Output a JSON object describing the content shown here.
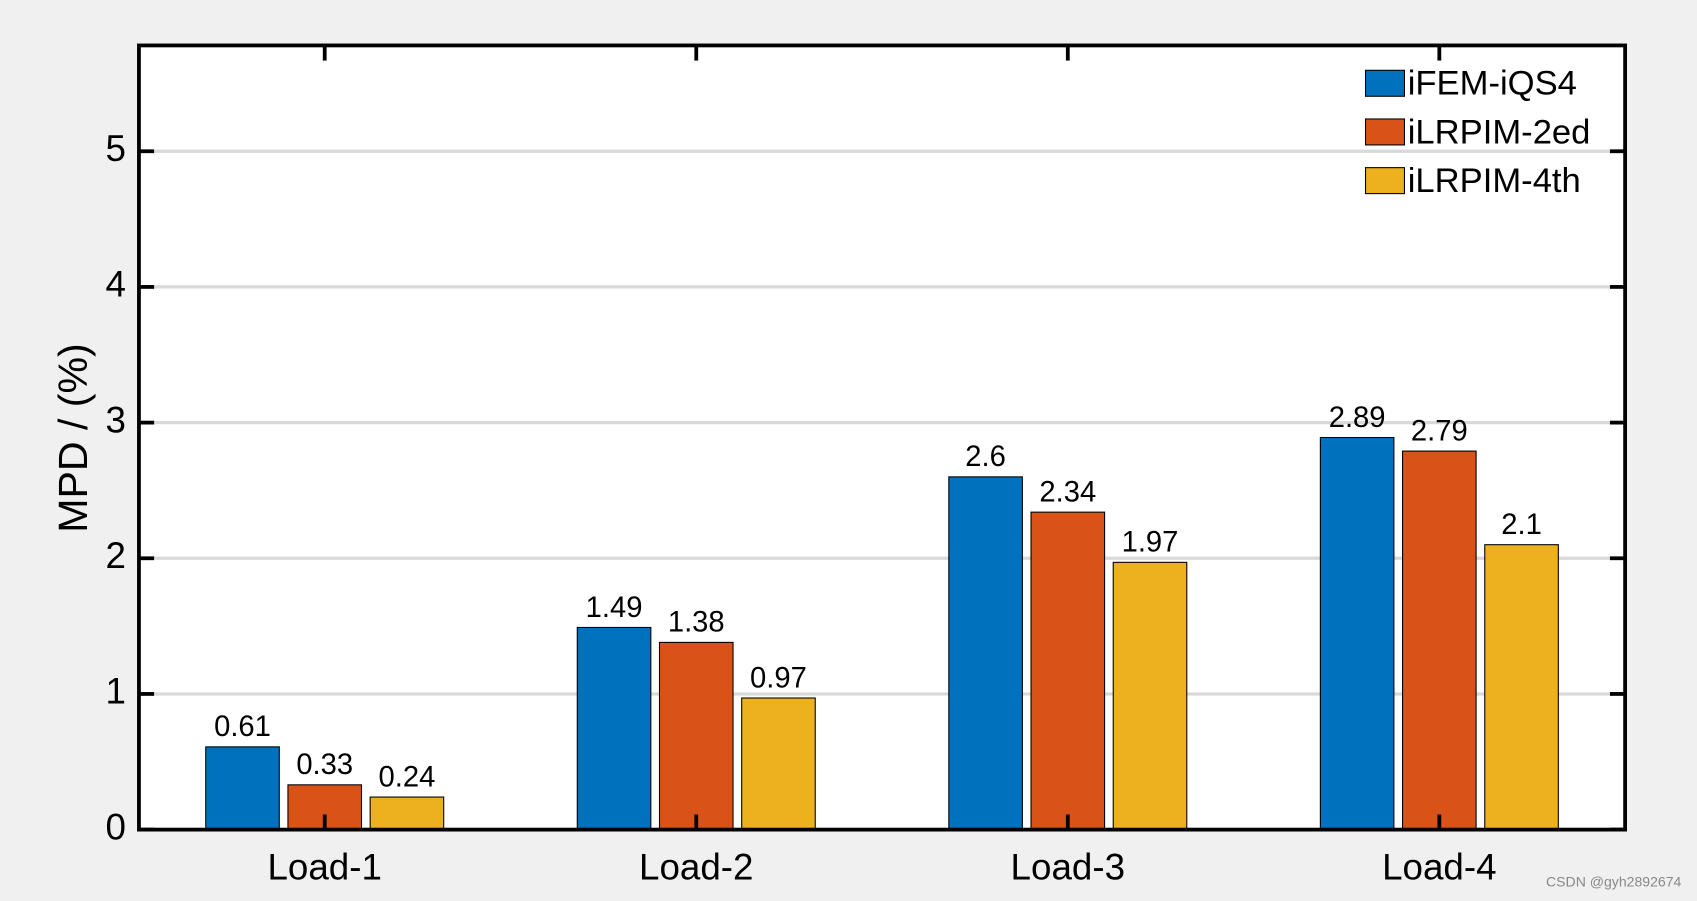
{
  "chart_data": {
    "type": "bar",
    "y_label": "MPD / (%)",
    "categories": [
      "Load-1",
      "Load-2",
      "Load-3",
      "Load-4"
    ],
    "series": [
      {
        "name": "iFEM-iQS4",
        "color": "#0072bd",
        "values": [
          0.61,
          1.49,
          2.6,
          2.89
        ]
      },
      {
        "name": "iLRPIM-2ed",
        "color": "#d95319",
        "values": [
          0.33,
          1.38,
          2.34,
          2.79
        ]
      },
      {
        "name": "iLRPIM-4th",
        "color": "#edb120",
        "values": [
          0.24,
          0.97,
          1.97,
          2.1
        ]
      }
    ],
    "ylim": [
      0,
      5.78
    ],
    "yticks": [
      0,
      1,
      2,
      3,
      4,
      5
    ],
    "grid": true,
    "legend": "top-right",
    "watermark": "CSDN @gyh2892674"
  }
}
